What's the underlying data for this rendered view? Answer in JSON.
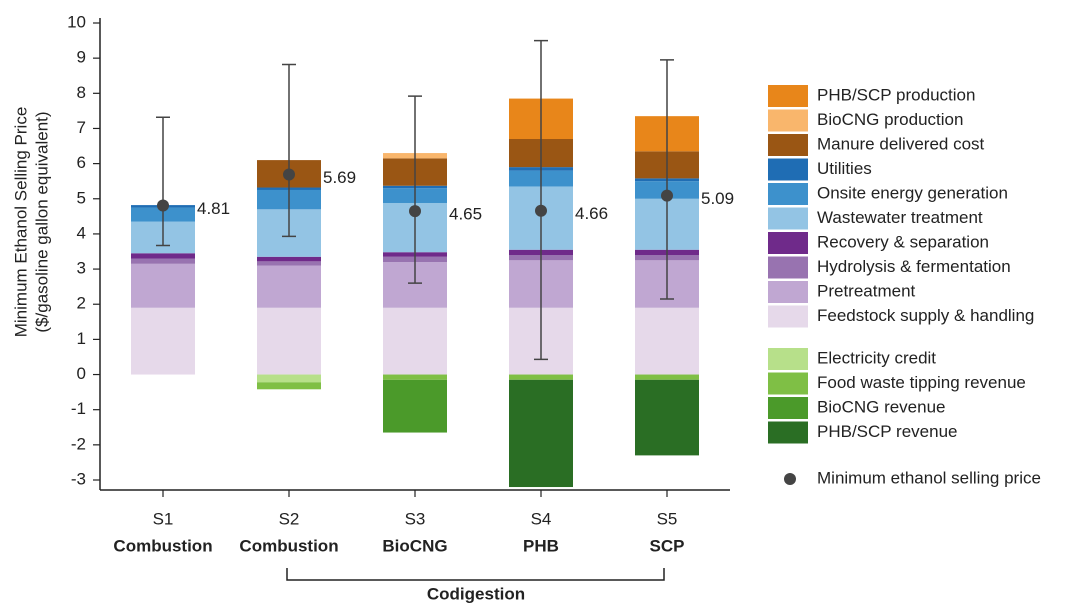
{
  "chart_data": {
    "type": "bar",
    "y_label": [
      "Minimum Ethanol Selling Price",
      "($/gasoline gallon equivalent)"
    ],
    "categories": [
      "S1",
      "S2",
      "S3",
      "S4",
      "S5"
    ],
    "scenarios": [
      "Combustion",
      "Combustion",
      "BioCNG",
      "PHB",
      "SCP"
    ],
    "group_label": "Codigestion",
    "ylim": [
      -3,
      10
    ],
    "yticks": [
      -3,
      -2,
      -1,
      0,
      1,
      2,
      3,
      4,
      5,
      6,
      7,
      8,
      9,
      10
    ],
    "stacked": true,
    "series": [
      {
        "name": "PHB/SCP production",
        "color": "#e8861a",
        "values": [
          0,
          0,
          0,
          1.15,
          1.0
        ]
      },
      {
        "name": "BioCNG production",
        "color": "#f9b66c",
        "values": [
          0,
          0,
          0.15,
          0,
          0
        ]
      },
      {
        "name": "Manure delivered cost",
        "color": "#9a5614",
        "values": [
          0,
          0.78,
          0.78,
          0.8,
          0.77
        ]
      },
      {
        "name": "Utilities",
        "color": "#1f6db4",
        "values": [
          0.07,
          0.07,
          0.07,
          0.1,
          0.08
        ]
      },
      {
        "name": "Onsite energy generation",
        "color": "#3d91cc",
        "values": [
          0.4,
          0.55,
          0.42,
          0.45,
          0.5
        ]
      },
      {
        "name": "Wastewater treatment",
        "color": "#93c4e4",
        "values": [
          0.9,
          1.35,
          1.4,
          1.8,
          1.45
        ]
      },
      {
        "name": "Recovery & separation",
        "color": "#6f2a8a",
        "values": [
          0.15,
          0.13,
          0.13,
          0.15,
          0.15
        ]
      },
      {
        "name": "Hydrolysis & fermentation",
        "color": "#9873b0",
        "values": [
          0.15,
          0.12,
          0.15,
          0.15,
          0.15
        ]
      },
      {
        "name": "Pretreatment",
        "color": "#c0a7d2",
        "values": [
          1.25,
          1.2,
          1.3,
          1.35,
          1.35
        ]
      },
      {
        "name": "Feedstock supply & handling",
        "color": "#e6d9ea",
        "values": [
          1.9,
          1.9,
          1.9,
          1.9,
          1.9
        ]
      },
      {
        "name": "Electricity credit",
        "color": "#b7e08a",
        "values": [
          0,
          -0.22,
          0,
          0,
          0
        ]
      },
      {
        "name": "Food waste tipping revenue",
        "color": "#7fbf45",
        "values": [
          0,
          -0.2,
          -0.15,
          -0.15,
          -0.15
        ]
      },
      {
        "name": "BioCNG revenue",
        "color": "#4b9a2a",
        "values": [
          0,
          0,
          -1.5,
          0,
          0
        ]
      },
      {
        "name": "PHB/SCP revenue",
        "color": "#2a6e24",
        "values": [
          0,
          0,
          0,
          -3.05,
          -2.15
        ]
      }
    ],
    "points": {
      "name": "Minimum ethanol selling price",
      "color": "#444444",
      "values": [
        4.81,
        5.69,
        4.65,
        4.66,
        5.09
      ],
      "error_low": [
        3.67,
        3.93,
        2.6,
        0.43,
        2.15
      ],
      "error_high": [
        7.32,
        8.82,
        7.92,
        9.5,
        8.95
      ]
    }
  }
}
